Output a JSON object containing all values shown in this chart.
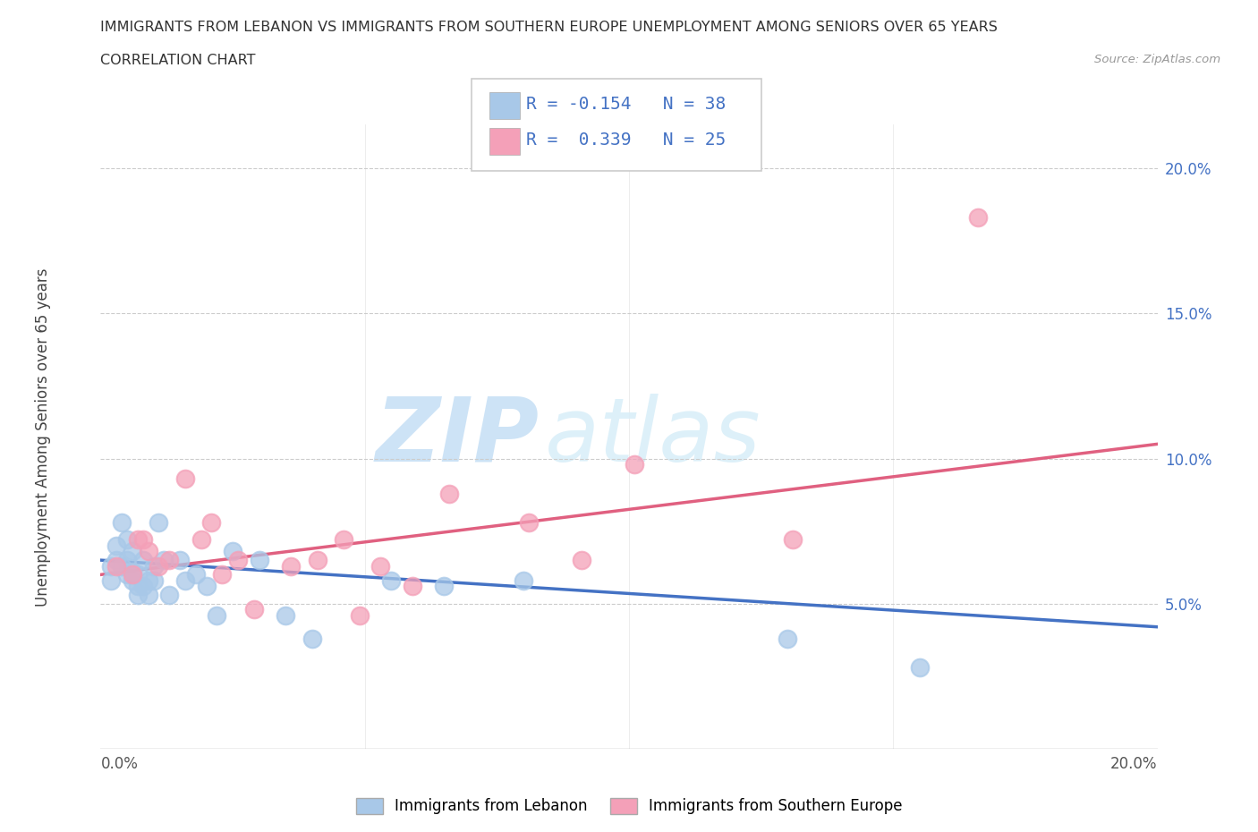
{
  "title_line1": "IMMIGRANTS FROM LEBANON VS IMMIGRANTS FROM SOUTHERN EUROPE UNEMPLOYMENT AMONG SENIORS OVER 65 YEARS",
  "title_line2": "CORRELATION CHART",
  "source_text": "Source: ZipAtlas.com",
  "ylabel": "Unemployment Among Seniors over 65 years",
  "legend1_label": "Immigrants from Lebanon",
  "legend2_label": "Immigrants from Southern Europe",
  "R1": -0.154,
  "N1": 38,
  "R2": 0.339,
  "N2": 25,
  "color_blue": "#a8c8e8",
  "color_pink": "#f4a0b8",
  "color_blue_line": "#4472c4",
  "color_pink_line": "#e06080",
  "color_text_blue": "#4472c4",
  "watermark_color": "#c8dff0",
  "blue_scatter_x": [
    0.002,
    0.002,
    0.003,
    0.003,
    0.004,
    0.004,
    0.005,
    0.005,
    0.005,
    0.006,
    0.006,
    0.006,
    0.007,
    0.007,
    0.007,
    0.008,
    0.008,
    0.009,
    0.009,
    0.01,
    0.01,
    0.011,
    0.012,
    0.013,
    0.015,
    0.016,
    0.018,
    0.02,
    0.022,
    0.025,
    0.03,
    0.035,
    0.04,
    0.055,
    0.065,
    0.08,
    0.13,
    0.155
  ],
  "blue_scatter_y": [
    0.063,
    0.058,
    0.065,
    0.07,
    0.063,
    0.078,
    0.06,
    0.065,
    0.072,
    0.058,
    0.061,
    0.068,
    0.056,
    0.06,
    0.053,
    0.056,
    0.065,
    0.053,
    0.058,
    0.058,
    0.063,
    0.078,
    0.065,
    0.053,
    0.065,
    0.058,
    0.06,
    0.056,
    0.046,
    0.068,
    0.065,
    0.046,
    0.038,
    0.058,
    0.056,
    0.058,
    0.038,
    0.028
  ],
  "pink_scatter_x": [
    0.003,
    0.006,
    0.007,
    0.008,
    0.009,
    0.011,
    0.013,
    0.016,
    0.019,
    0.021,
    0.023,
    0.026,
    0.029,
    0.036,
    0.041,
    0.046,
    0.049,
    0.053,
    0.059,
    0.066,
    0.081,
    0.091,
    0.101,
    0.131,
    0.166
  ],
  "pink_scatter_y": [
    0.063,
    0.06,
    0.072,
    0.072,
    0.068,
    0.063,
    0.065,
    0.093,
    0.072,
    0.078,
    0.06,
    0.065,
    0.048,
    0.063,
    0.065,
    0.072,
    0.046,
    0.063,
    0.056,
    0.088,
    0.078,
    0.065,
    0.098,
    0.072,
    0.183
  ],
  "xlim": [
    0.0,
    0.2
  ],
  "ylim": [
    0.0,
    0.215
  ],
  "yticks": [
    0.05,
    0.1,
    0.15,
    0.2
  ],
  "ytick_labels": [
    "5.0%",
    "10.0%",
    "15.0%",
    "20.0%"
  ],
  "xtick_positions": [
    0.0,
    0.05,
    0.1,
    0.15,
    0.2
  ]
}
